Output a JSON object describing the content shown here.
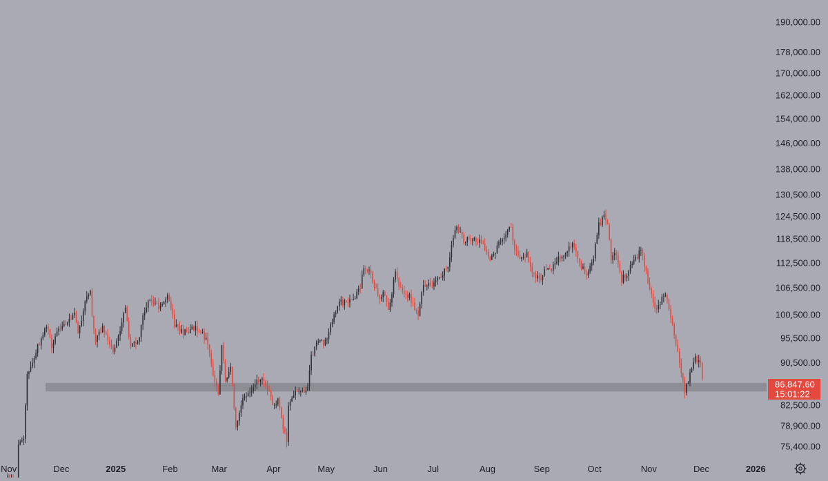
{
  "colors": {
    "background": "#a9aab3",
    "up_candle": "#2b2d33",
    "down_candle": "#e5483c",
    "support_zone": "#8d8e95",
    "price_badge": "#e5483c",
    "axis_text": "#1e1f24"
  },
  "settings_icon": "gear-icon",
  "price_badge": {
    "price": "86,847.60",
    "countdown": "15:01:22"
  },
  "chart_data": {
    "type": "candlestick",
    "title": "",
    "xlabel": "",
    "ylabel": "",
    "y_scale": "log",
    "ylim": [
      73500,
      197000
    ],
    "xlim": [
      "2024-10-27",
      "2026-01-06"
    ],
    "grid": false,
    "y_ticks": [
      190000,
      178000,
      170000,
      162000,
      154000,
      146000,
      138000,
      130500,
      124500,
      118500,
      112500,
      106500,
      100500,
      95500,
      90500,
      82500,
      78900,
      75400
    ],
    "y_tick_labels": [
      "190,000.00",
      "178,000.00",
      "170,000.00",
      "162,000.00",
      "154,000.00",
      "146,000.00",
      "138,000.00",
      "130,500.00",
      "124,500.00",
      "118,500.00",
      "112,500.00",
      "106,500.00",
      "100,500.00",
      "95,500.00",
      "90,500.00",
      "82,500.00",
      "78,900.00",
      "75,400.00"
    ],
    "x_ticks": [
      {
        "label": "Nov",
        "date": "2024-11-01"
      },
      {
        "label": "Dec",
        "date": "2024-12-01"
      },
      {
        "label": "2025",
        "date": "2025-01-01",
        "bold": true
      },
      {
        "label": "Feb",
        "date": "2025-02-01"
      },
      {
        "label": "Mar",
        "date": "2025-03-01"
      },
      {
        "label": "Apr",
        "date": "2025-04-01"
      },
      {
        "label": "May",
        "date": "2025-05-01"
      },
      {
        "label": "Jun",
        "date": "2025-06-01"
      },
      {
        "label": "Jul",
        "date": "2025-07-01"
      },
      {
        "label": "Aug",
        "date": "2025-08-01"
      },
      {
        "label": "Sep",
        "date": "2025-09-01"
      },
      {
        "label": "Oct",
        "date": "2025-10-01"
      },
      {
        "label": "Nov",
        "date": "2025-11-01"
      },
      {
        "label": "Dec",
        "date": "2025-12-01"
      },
      {
        "label": "2026",
        "date": "2026-01-01",
        "bold": true
      }
    ],
    "support_zone": [
      85000,
      86600
    ],
    "close_path": [
      [
        "2024-10-31",
        70500
      ],
      [
        "2024-11-05",
        69500
      ],
      [
        "2024-11-06",
        75500
      ],
      [
        "2024-11-09",
        77000
      ],
      [
        "2024-11-11",
        88500
      ],
      [
        "2024-11-13",
        90000
      ],
      [
        "2024-11-15",
        91500
      ],
      [
        "2024-11-17",
        93500
      ],
      [
        "2024-11-22",
        98500
      ],
      [
        "2024-11-25",
        93500
      ],
      [
        "2024-11-28",
        96500
      ],
      [
        "2024-12-01",
        97500
      ],
      [
        "2024-12-05",
        99000
      ],
      [
        "2024-12-08",
        101000
      ],
      [
        "2024-12-10",
        96500
      ],
      [
        "2024-12-13",
        101500
      ],
      [
        "2024-12-17",
        106500
      ],
      [
        "2024-12-18",
        100500
      ],
      [
        "2024-12-20",
        95000
      ],
      [
        "2024-12-24",
        97500
      ],
      [
        "2024-12-30",
        92500
      ],
      [
        "2025-01-03",
        97500
      ],
      [
        "2025-01-06",
        101500
      ],
      [
        "2025-01-09",
        93500
      ],
      [
        "2025-01-13",
        94500
      ],
      [
        "2025-01-16",
        100000
      ],
      [
        "2025-01-20",
        104000
      ],
      [
        "2025-01-23",
        103000
      ],
      [
        "2025-01-26",
        102000
      ],
      [
        "2025-01-30",
        104500
      ],
      [
        "2025-02-03",
        98500
      ],
      [
        "2025-02-08",
        96500
      ],
      [
        "2025-02-15",
        97500
      ],
      [
        "2025-02-21",
        95500
      ],
      [
        "2025-02-25",
        88500
      ],
      [
        "2025-02-28",
        84500
      ],
      [
        "2025-03-02",
        94000
      ],
      [
        "2025-03-04",
        87000
      ],
      [
        "2025-03-07",
        89500
      ],
      [
        "2025-03-10",
        79000
      ],
      [
        "2025-03-14",
        83500
      ],
      [
        "2025-03-19",
        85500
      ],
      [
        "2025-03-24",
        87500
      ],
      [
        "2025-03-27",
        86500
      ],
      [
        "2025-03-31",
        82500
      ],
      [
        "2025-04-03",
        83500
      ],
      [
        "2025-04-06",
        78500
      ],
      [
        "2025-04-08",
        76500
      ],
      [
        "2025-04-09",
        82500
      ],
      [
        "2025-04-13",
        84500
      ],
      [
        "2025-04-20",
        85500
      ],
      [
        "2025-04-22",
        91500
      ],
      [
        "2025-04-25",
        94500
      ],
      [
        "2025-04-30",
        94500
      ],
      [
        "2025-05-02",
        97000
      ],
      [
        "2025-05-08",
        103000
      ],
      [
        "2025-05-12",
        103500
      ],
      [
        "2025-05-15",
        103500
      ],
      [
        "2025-05-20",
        106500
      ],
      [
        "2025-05-22",
        111500
      ],
      [
        "2025-05-26",
        109500
      ],
      [
        "2025-05-30",
        104500
      ],
      [
        "2025-06-03",
        105500
      ],
      [
        "2025-06-05",
        101500
      ],
      [
        "2025-06-09",
        110000
      ],
      [
        "2025-06-12",
        106000
      ],
      [
        "2025-06-17",
        104500
      ],
      [
        "2025-06-22",
        100500
      ],
      [
        "2025-06-25",
        107000
      ],
      [
        "2025-06-30",
        107500
      ],
      [
        "2025-07-04",
        108500
      ],
      [
        "2025-07-09",
        111500
      ],
      [
        "2025-07-11",
        117500
      ],
      [
        "2025-07-14",
        121500
      ],
      [
        "2025-07-18",
        118000
      ],
      [
        "2025-07-24",
        118500
      ],
      [
        "2025-07-29",
        117500
      ],
      [
        "2025-08-02",
        113000
      ],
      [
        "2025-08-07",
        117000
      ],
      [
        "2025-08-11",
        119500
      ],
      [
        "2025-08-14",
        122000
      ],
      [
        "2025-08-15",
        117500
      ],
      [
        "2025-08-19",
        113500
      ],
      [
        "2025-08-23",
        115000
      ],
      [
        "2025-08-26",
        110000
      ],
      [
        "2025-08-31",
        108500
      ],
      [
        "2025-09-03",
        111000
      ],
      [
        "2025-09-05",
        110500
      ],
      [
        "2025-09-10",
        113500
      ],
      [
        "2025-09-14",
        115500
      ],
      [
        "2025-09-18",
        117000
      ],
      [
        "2025-09-22",
        112500
      ],
      [
        "2025-09-26",
        109500
      ],
      [
        "2025-09-30",
        114000
      ],
      [
        "2025-10-03",
        122000
      ],
      [
        "2025-10-06",
        124500
      ],
      [
        "2025-10-08",
        122500
      ],
      [
        "2025-10-10",
        113500
      ],
      [
        "2025-10-13",
        115000
      ],
      [
        "2025-10-16",
        108500
      ],
      [
        "2025-10-20",
        110500
      ],
      [
        "2025-10-27",
        115500
      ],
      [
        "2025-10-30",
        110000
      ],
      [
        "2025-11-04",
        101500
      ],
      [
        "2025-11-07",
        103000
      ],
      [
        "2025-11-10",
        105500
      ],
      [
        "2025-11-13",
        100000
      ],
      [
        "2025-11-17",
        92500
      ],
      [
        "2025-11-20",
        86500
      ],
      [
        "2025-11-21",
        84500
      ],
      [
        "2025-11-24",
        88500
      ],
      [
        "2025-11-27",
        91500
      ],
      [
        "2025-11-30",
        90500
      ],
      [
        "2025-12-01",
        86800
      ]
    ]
  }
}
